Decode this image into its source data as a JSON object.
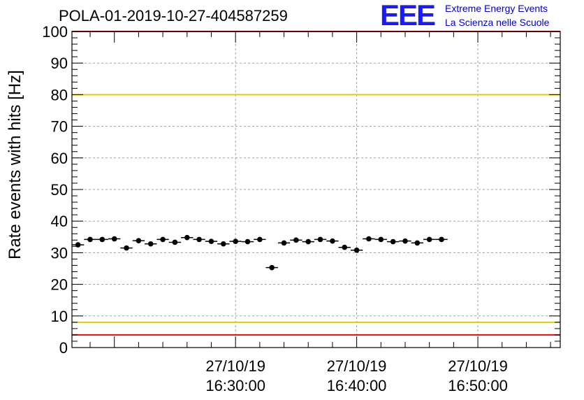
{
  "title": "POLA-01-2019-10-27-404587259",
  "logo": {
    "mark": "EEE",
    "line1": "Extreme Energy Events",
    "line2": "La Scienza nelle Scuole"
  },
  "colors": {
    "red_line": "#ff0000",
    "yellow_line": "#e8c800",
    "points": "#000000",
    "grid": "#a0a0a0",
    "logo": "#1a1aff"
  },
  "chart_data": {
    "type": "scatter",
    "ylabel": "Rate events with hits [Hz]",
    "ylim": [
      0,
      100
    ],
    "yticks": [
      0,
      10,
      20,
      30,
      40,
      50,
      60,
      70,
      80,
      90,
      100
    ],
    "x_range_minutes": [
      16.5,
      56.8
    ],
    "xticks": [
      {
        "minute": 30,
        "date": "27/10/19",
        "time": "16:30:00"
      },
      {
        "minute": 40,
        "date": "27/10/19",
        "time": "16:40:00"
      },
      {
        "minute": 50,
        "date": "27/10/19",
        "time": "16:50:00"
      }
    ],
    "reference_lines": [
      {
        "value": 100,
        "color": "red"
      },
      {
        "value": 80,
        "color": "yellow"
      },
      {
        "value": 8,
        "color": "yellow"
      },
      {
        "value": 4,
        "color": "red"
      }
    ],
    "grid": true,
    "bin_width_minutes": 1,
    "points": [
      {
        "minute": 17.0,
        "value": 32.5
      },
      {
        "minute": 18.0,
        "value": 34.2
      },
      {
        "minute": 19.0,
        "value": 34.2
      },
      {
        "minute": 20.0,
        "value": 34.4
      },
      {
        "minute": 21.0,
        "value": 31.5
      },
      {
        "minute": 22.0,
        "value": 33.8
      },
      {
        "minute": 23.0,
        "value": 32.8
      },
      {
        "minute": 24.0,
        "value": 34.2
      },
      {
        "minute": 25.0,
        "value": 33.3
      },
      {
        "minute": 26.0,
        "value": 34.8
      },
      {
        "minute": 27.0,
        "value": 34.2
      },
      {
        "minute": 28.0,
        "value": 33.6
      },
      {
        "minute": 29.0,
        "value": 32.8
      },
      {
        "minute": 30.0,
        "value": 33.6
      },
      {
        "minute": 31.0,
        "value": 33.5
      },
      {
        "minute": 32.0,
        "value": 34.2
      },
      {
        "minute": 33.0,
        "value": 25.3
      },
      {
        "minute": 34.0,
        "value": 33.1
      },
      {
        "minute": 35.0,
        "value": 34.0
      },
      {
        "minute": 36.0,
        "value": 33.5
      },
      {
        "minute": 37.0,
        "value": 34.2
      },
      {
        "minute": 38.0,
        "value": 33.7
      },
      {
        "minute": 39.0,
        "value": 31.7
      },
      {
        "minute": 40.0,
        "value": 30.8
      },
      {
        "minute": 41.0,
        "value": 34.4
      },
      {
        "minute": 42.0,
        "value": 34.2
      },
      {
        "minute": 43.0,
        "value": 33.5
      },
      {
        "minute": 44.0,
        "value": 33.7
      },
      {
        "minute": 45.0,
        "value": 33.1
      },
      {
        "minute": 46.0,
        "value": 34.2
      },
      {
        "minute": 47.0,
        "value": 34.2
      }
    ]
  }
}
